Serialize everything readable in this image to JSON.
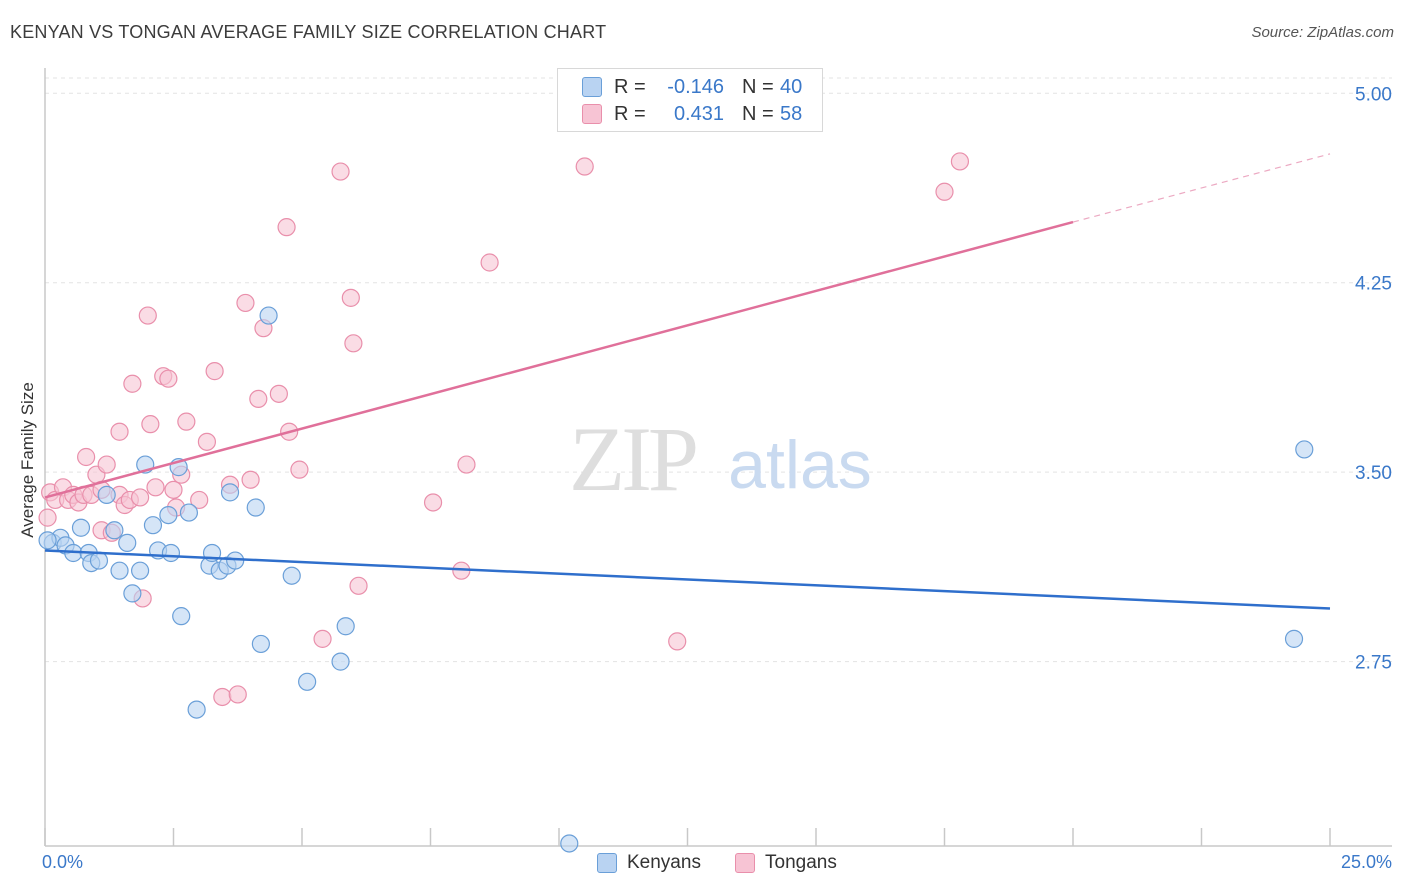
{
  "title": "KENYAN VS TONGAN AVERAGE FAMILY SIZE CORRELATION CHART",
  "source": "Source: ZipAtlas.com",
  "watermark": {
    "zip": "ZIP",
    "atlas": "atlas"
  },
  "legend": {
    "r_label": "R =",
    "n_label": "N =",
    "rows": [
      {
        "name": "Kenyans",
        "r": "-0.146",
        "n": "40",
        "fill": "#b9d3f2",
        "stroke": "#6a9fd8"
      },
      {
        "name": "Tongans",
        "r": "0.431",
        "n": "58",
        "fill": "#f7c4d4",
        "stroke": "#e98fab"
      }
    ]
  },
  "colors": {
    "kenyan_line": "#2f6fcc",
    "tongan_line": "#e0709a",
    "tick_text": "#3a78c9",
    "grid": "#e3e3e3"
  },
  "chart_data": {
    "type": "scatter",
    "title": "KENYAN VS TONGAN AVERAGE FAMILY SIZE CORRELATION CHART",
    "xlabel": "",
    "ylabel": "Average Family Size",
    "xlim": [
      0,
      25
    ],
    "ylim": [
      2.02,
      5.1
    ],
    "x_tick_labels": [
      "0.0%",
      "25.0%"
    ],
    "y_ticks": [
      2.75,
      3.5,
      4.25,
      5.0
    ],
    "y_tick_labels": [
      "2.75",
      "3.50",
      "4.25",
      "5.00"
    ],
    "grid": true,
    "series": [
      {
        "name": "Kenyans",
        "trend": {
          "x": [
            0,
            25
          ],
          "y": [
            3.19,
            2.96
          ]
        },
        "points": [
          {
            "x": 0.15,
            "y": 3.22
          },
          {
            "x": 0.3,
            "y": 3.24
          },
          {
            "x": 0.4,
            "y": 3.21
          },
          {
            "x": 0.55,
            "y": 3.18
          },
          {
            "x": 0.7,
            "y": 3.28
          },
          {
            "x": 0.85,
            "y": 3.18
          },
          {
            "x": 0.9,
            "y": 3.14
          },
          {
            "x": 1.05,
            "y": 3.15
          },
          {
            "x": 1.2,
            "y": 3.41
          },
          {
            "x": 1.35,
            "y": 3.27
          },
          {
            "x": 1.45,
            "y": 3.11
          },
          {
            "x": 1.6,
            "y": 3.22
          },
          {
            "x": 1.7,
            "y": 3.02
          },
          {
            "x": 1.85,
            "y": 3.11
          },
          {
            "x": 1.95,
            "y": 3.53
          },
          {
            "x": 2.1,
            "y": 3.29
          },
          {
            "x": 2.2,
            "y": 3.19
          },
          {
            "x": 2.4,
            "y": 3.33
          },
          {
            "x": 2.45,
            "y": 3.18
          },
          {
            "x": 2.6,
            "y": 3.52
          },
          {
            "x": 2.65,
            "y": 2.93
          },
          {
            "x": 2.8,
            "y": 3.34
          },
          {
            "x": 2.95,
            "y": 2.56
          },
          {
            "x": 3.2,
            "y": 3.13
          },
          {
            "x": 3.25,
            "y": 3.18
          },
          {
            "x": 3.4,
            "y": 3.11
          },
          {
            "x": 3.55,
            "y": 3.13
          },
          {
            "x": 3.6,
            "y": 3.42
          },
          {
            "x": 3.7,
            "y": 3.15
          },
          {
            "x": 4.1,
            "y": 3.36
          },
          {
            "x": 4.2,
            "y": 2.82
          },
          {
            "x": 4.35,
            "y": 4.12
          },
          {
            "x": 4.8,
            "y": 3.09
          },
          {
            "x": 5.1,
            "y": 2.67
          },
          {
            "x": 5.75,
            "y": 2.75
          },
          {
            "x": 5.85,
            "y": 2.89
          },
          {
            "x": 10.2,
            "y": 2.03
          },
          {
            "x": 24.3,
            "y": 2.84
          },
          {
            "x": 24.5,
            "y": 3.59
          },
          {
            "x": 0.05,
            "y": 3.23
          }
        ]
      },
      {
        "name": "Tongans",
        "trend": {
          "x": [
            0,
            20
          ],
          "y": [
            3.4,
            4.49
          ]
        },
        "trend_dashed": {
          "x": [
            20,
            25
          ],
          "y": [
            4.49,
            4.76
          ]
        },
        "points": [
          {
            "x": 0.05,
            "y": 3.32
          },
          {
            "x": 0.1,
            "y": 3.42
          },
          {
            "x": 0.2,
            "y": 3.39
          },
          {
            "x": 0.35,
            "y": 3.44
          },
          {
            "x": 0.45,
            "y": 3.39
          },
          {
            "x": 0.55,
            "y": 3.41
          },
          {
            "x": 0.65,
            "y": 3.38
          },
          {
            "x": 0.75,
            "y": 3.41
          },
          {
            "x": 0.8,
            "y": 3.56
          },
          {
            "x": 0.9,
            "y": 3.41
          },
          {
            "x": 1.0,
            "y": 3.49
          },
          {
            "x": 1.1,
            "y": 3.43
          },
          {
            "x": 1.1,
            "y": 3.27
          },
          {
            "x": 1.2,
            "y": 3.53
          },
          {
            "x": 1.3,
            "y": 3.26
          },
          {
            "x": 1.45,
            "y": 3.41
          },
          {
            "x": 1.45,
            "y": 3.66
          },
          {
            "x": 1.55,
            "y": 3.37
          },
          {
            "x": 1.65,
            "y": 3.39
          },
          {
            "x": 1.7,
            "y": 3.85
          },
          {
            "x": 1.85,
            "y": 3.4
          },
          {
            "x": 1.9,
            "y": 3.0
          },
          {
            "x": 2.0,
            "y": 4.12
          },
          {
            "x": 2.05,
            "y": 3.69
          },
          {
            "x": 2.15,
            "y": 3.44
          },
          {
            "x": 2.3,
            "y": 3.88
          },
          {
            "x": 2.4,
            "y": 3.87
          },
          {
            "x": 2.5,
            "y": 3.43
          },
          {
            "x": 2.55,
            "y": 3.36
          },
          {
            "x": 2.65,
            "y": 3.49
          },
          {
            "x": 2.75,
            "y": 3.7
          },
          {
            "x": 3.0,
            "y": 3.39
          },
          {
            "x": 3.15,
            "y": 3.62
          },
          {
            "x": 3.3,
            "y": 3.9
          },
          {
            "x": 3.45,
            "y": 2.61
          },
          {
            "x": 3.6,
            "y": 3.45
          },
          {
            "x": 3.75,
            "y": 2.62
          },
          {
            "x": 3.9,
            "y": 4.17
          },
          {
            "x": 4.0,
            "y": 3.47
          },
          {
            "x": 4.15,
            "y": 3.79
          },
          {
            "x": 4.25,
            "y": 4.07
          },
          {
            "x": 4.55,
            "y": 3.81
          },
          {
            "x": 4.7,
            "y": 4.47
          },
          {
            "x": 4.75,
            "y": 3.66
          },
          {
            "x": 4.95,
            "y": 3.51
          },
          {
            "x": 5.4,
            "y": 2.84
          },
          {
            "x": 5.75,
            "y": 4.69
          },
          {
            "x": 5.95,
            "y": 4.19
          },
          {
            "x": 6.0,
            "y": 4.01
          },
          {
            "x": 6.1,
            "y": 3.05
          },
          {
            "x": 7.55,
            "y": 3.38
          },
          {
            "x": 8.1,
            "y": 3.11
          },
          {
            "x": 8.2,
            "y": 3.53
          },
          {
            "x": 8.65,
            "y": 4.33
          },
          {
            "x": 10.5,
            "y": 4.71
          },
          {
            "x": 12.3,
            "y": 2.83
          },
          {
            "x": 17.5,
            "y": 4.61
          },
          {
            "x": 17.8,
            "y": 4.73
          }
        ]
      }
    ]
  }
}
